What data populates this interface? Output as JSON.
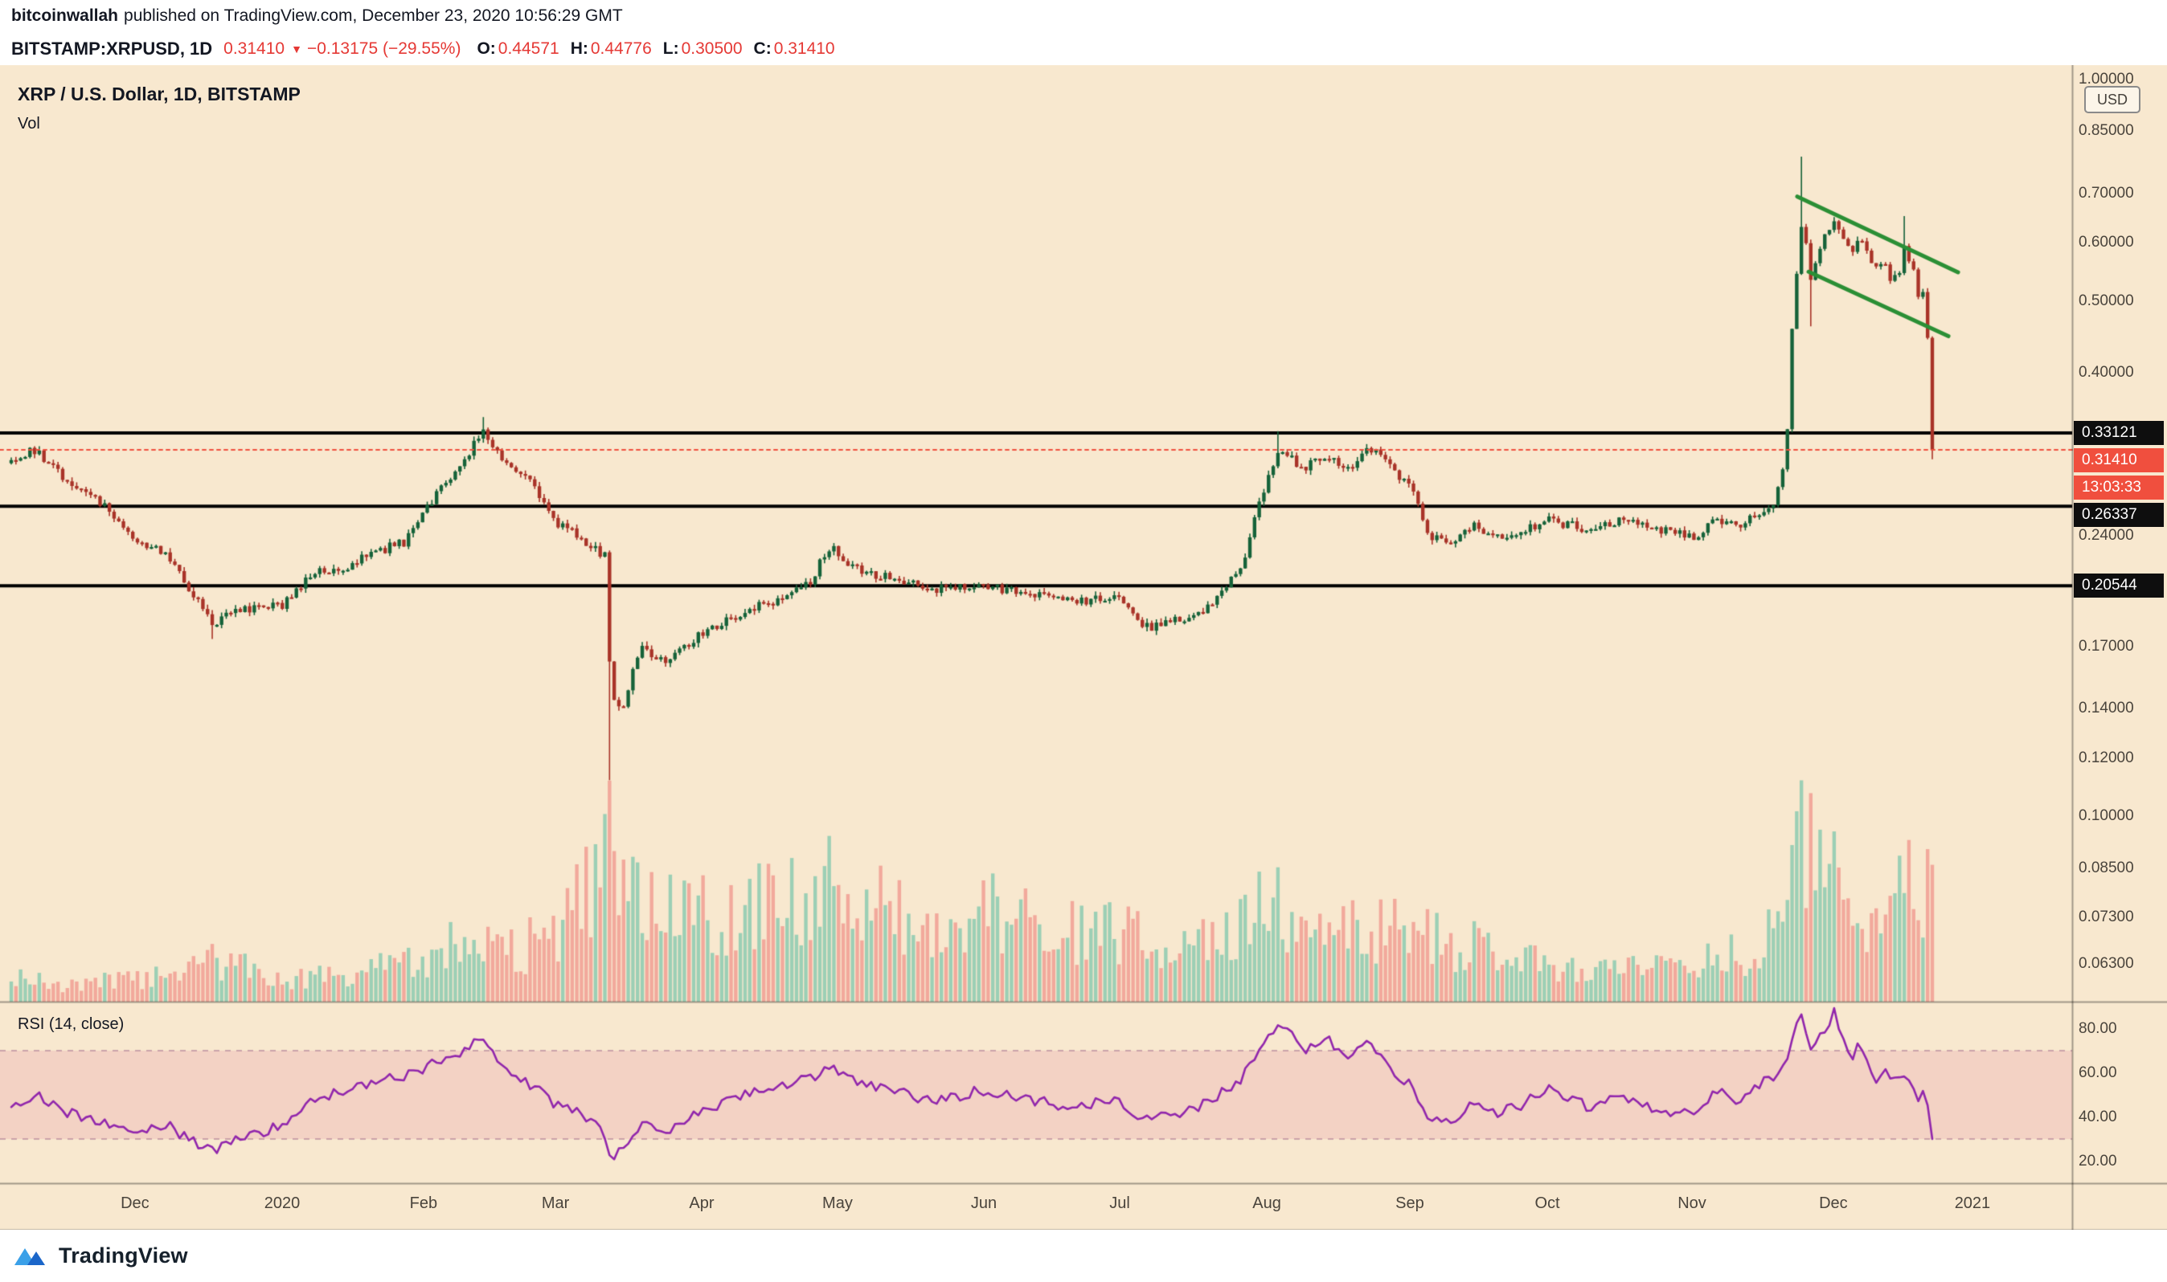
{
  "header": {
    "author": "bitcoinwallah",
    "published": "published on TradingView.com, December 23, 2020 10:56:29 GMT",
    "symbol": "BITSTAMP:XRPUSD, 1D",
    "last": "0.31410",
    "direction": "▼",
    "change": "−0.13175 (−29.55%)",
    "o_label": "O:",
    "o_value": "0.44571",
    "h_label": "H:",
    "h_value": "0.44776",
    "l_label": "L:",
    "l_value": "0.30500",
    "c_label": "C:",
    "c_value": "0.31410"
  },
  "chart": {
    "legend_title": "XRP / U.S. Dollar, 1D, BITSTAMP",
    "legend_vol": "Vol",
    "rsi_label": "RSI (14, close)",
    "axis_currency": "USD"
  },
  "footer": {
    "brand": "TradingView"
  },
  "colors": {
    "background": "#f8e8cf",
    "candle_up": "#156239",
    "candle_down": "#a93328",
    "vol_up": "#9ccfb5",
    "vol_down": "#f2a99c",
    "level_line": "#000000",
    "last_price_line": "#f04f3e",
    "label_black_bg": "#0e0e0e",
    "label_red_bg": "#f04f3e",
    "channel": "#2b8f35",
    "rsi_line": "#9126ac",
    "rsi_band_fill": "rgba(210,60,120,0.13)",
    "rsi_band_edge": "rgba(150,90,130,0.55)",
    "separator": "rgba(0,0,0,0.35)",
    "axis_text": "#4a443c"
  },
  "chart_data": {
    "type": "candlestick",
    "symbol": "XRP/USD",
    "exchange": "BITSTAMP",
    "timeframe": "1D",
    "price_scale": "log",
    "last_price": 0.3141,
    "last_candle": {
      "o": 0.44571,
      "h": 0.44776,
      "l": 0.305,
      "c": 0.3141
    },
    "countdown": "13:03:33",
    "horizontal_lines": [
      0.33121,
      0.26337,
      0.20544
    ],
    "price_axis": {
      "ticks": [
        "1.00000",
        "0.85000",
        "0.70000",
        "0.60000",
        "0.50000",
        "0.40000",
        "0.24000",
        "0.17000",
        "0.14000",
        "0.12000",
        "0.10000",
        "0.08500",
        "0.07300",
        "0.06300"
      ],
      "labels": [
        {
          "text": "0.33121",
          "price": 0.33121,
          "style": "level"
        },
        {
          "text": "0.31410",
          "price": 0.3141,
          "style": "last"
        },
        {
          "text": "13:03:33",
          "price": 0.3141,
          "style": "countdown"
        },
        {
          "text": "0.26337",
          "price": 0.26337,
          "style": "level"
        },
        {
          "text": "0.20544",
          "price": 0.20544,
          "style": "level"
        }
      ]
    },
    "rsi": {
      "ticks": [
        "20.00",
        "40.00",
        "60.00",
        "80.00"
      ],
      "band": [
        30,
        70
      ]
    },
    "time_axis": [
      {
        "label": "Dec",
        "t": 0.0644
      },
      {
        "label": "2020",
        "t": 0.141
      },
      {
        "label": "Feb",
        "t": 0.2146
      },
      {
        "label": "Mar",
        "t": 0.2833
      },
      {
        "label": "Apr",
        "t": 0.3594
      },
      {
        "label": "May",
        "t": 0.4301
      },
      {
        "label": "Jun",
        "t": 0.5063
      },
      {
        "label": "Jul",
        "t": 0.577
      },
      {
        "label": "Aug",
        "t": 0.6536
      },
      {
        "label": "Sep",
        "t": 0.728
      },
      {
        "label": "Oct",
        "t": 0.7996
      },
      {
        "label": "Nov",
        "t": 0.8749
      },
      {
        "label": "Dec",
        "t": 0.9485
      },
      {
        "label": "2021",
        "t": 1.0209
      }
    ],
    "candles": 412,
    "seed": 20,
    "price_path": [
      [
        0,
        0.302
      ],
      [
        0.012,
        0.314
      ],
      [
        0.03,
        0.283
      ],
      [
        0.05,
        0.262
      ],
      [
        0.064,
        0.24
      ],
      [
        0.08,
        0.226
      ],
      [
        0.092,
        0.205
      ],
      [
        0.104,
        0.183
      ],
      [
        0.118,
        0.19
      ],
      [
        0.141,
        0.193
      ],
      [
        0.158,
        0.214
      ],
      [
        0.175,
        0.219
      ],
      [
        0.192,
        0.229
      ],
      [
        0.205,
        0.236
      ],
      [
        0.215,
        0.258
      ],
      [
        0.232,
        0.296
      ],
      [
        0.246,
        0.332
      ],
      [
        0.256,
        0.305
      ],
      [
        0.268,
        0.288
      ],
      [
        0.283,
        0.252
      ],
      [
        0.298,
        0.237
      ],
      [
        0.309,
        0.225
      ],
      [
        0.312,
        0.148
      ],
      [
        0.318,
        0.14
      ],
      [
        0.328,
        0.17
      ],
      [
        0.34,
        0.163
      ],
      [
        0.359,
        0.177
      ],
      [
        0.378,
        0.188
      ],
      [
        0.398,
        0.196
      ],
      [
        0.415,
        0.207
      ],
      [
        0.427,
        0.233
      ],
      [
        0.44,
        0.216
      ],
      [
        0.458,
        0.211
      ],
      [
        0.478,
        0.203
      ],
      [
        0.506,
        0.206
      ],
      [
        0.525,
        0.201
      ],
      [
        0.548,
        0.196
      ],
      [
        0.577,
        0.197
      ],
      [
        0.59,
        0.18
      ],
      [
        0.605,
        0.184
      ],
      [
        0.622,
        0.191
      ],
      [
        0.64,
        0.216
      ],
      [
        0.654,
        0.286
      ],
      [
        0.66,
        0.318
      ],
      [
        0.672,
        0.297
      ],
      [
        0.684,
        0.309
      ],
      [
        0.696,
        0.294
      ],
      [
        0.708,
        0.316
      ],
      [
        0.719,
        0.296
      ],
      [
        0.728,
        0.281
      ],
      [
        0.738,
        0.239
      ],
      [
        0.75,
        0.234
      ],
      [
        0.76,
        0.248
      ],
      [
        0.772,
        0.241
      ],
      [
        0.785,
        0.243
      ],
      [
        0.8,
        0.253
      ],
      [
        0.812,
        0.248
      ],
      [
        0.825,
        0.243
      ],
      [
        0.836,
        0.253
      ],
      [
        0.848,
        0.247
      ],
      [
        0.86,
        0.244
      ],
      [
        0.875,
        0.239
      ],
      [
        0.887,
        0.252
      ],
      [
        0.898,
        0.248
      ],
      [
        0.908,
        0.254
      ],
      [
        0.918,
        0.266
      ],
      [
        0.924,
        0.305
      ],
      [
        0.9264,
        0.44
      ],
      [
        0.9288,
        0.5
      ],
      [
        0.9313,
        0.645
      ],
      [
        0.9337,
        0.615
      ],
      [
        0.9362,
        0.53
      ],
      [
        0.9411,
        0.585
      ],
      [
        0.946,
        0.625
      ],
      [
        0.9485,
        0.648
      ],
      [
        0.9532,
        0.612
      ],
      [
        0.9579,
        0.585
      ],
      [
        0.9626,
        0.612
      ],
      [
        0.9672,
        0.575
      ],
      [
        0.9719,
        0.548
      ],
      [
        0.9766,
        0.568
      ],
      [
        0.9789,
        0.525
      ],
      [
        0.9836,
        0.556
      ],
      [
        0.9859,
        0.596
      ],
      [
        0.9883,
        0.568
      ],
      [
        0.9906,
        0.552
      ],
      [
        0.993,
        0.502
      ],
      [
        0.9953,
        0.522
      ],
      [
        0.9977,
        0.4457
      ],
      [
        1,
        0.3141
      ]
    ],
    "volume_path": [
      [
        0,
        0.1
      ],
      [
        0.03,
        0.08
      ],
      [
        0.064,
        0.09
      ],
      [
        0.092,
        0.14
      ],
      [
        0.104,
        0.18
      ],
      [
        0.141,
        0.1
      ],
      [
        0.17,
        0.12
      ],
      [
        0.19,
        0.15
      ],
      [
        0.215,
        0.2
      ],
      [
        0.246,
        0.28
      ],
      [
        0.268,
        0.24
      ],
      [
        0.283,
        0.3
      ],
      [
        0.309,
        0.55
      ],
      [
        0.312,
        0.78
      ],
      [
        0.318,
        0.62
      ],
      [
        0.328,
        0.45
      ],
      [
        0.345,
        0.4
      ],
      [
        0.359,
        0.38
      ],
      [
        0.38,
        0.36
      ],
      [
        0.4,
        0.48
      ],
      [
        0.415,
        0.42
      ],
      [
        0.427,
        0.5
      ],
      [
        0.445,
        0.42
      ],
      [
        0.47,
        0.36
      ],
      [
        0.506,
        0.4
      ],
      [
        0.53,
        0.36
      ],
      [
        0.555,
        0.3
      ],
      [
        0.577,
        0.3
      ],
      [
        0.6,
        0.26
      ],
      [
        0.62,
        0.28
      ],
      [
        0.645,
        0.38
      ],
      [
        0.654,
        0.44
      ],
      [
        0.672,
        0.38
      ],
      [
        0.7,
        0.32
      ],
      [
        0.728,
        0.32
      ],
      [
        0.75,
        0.26
      ],
      [
        0.78,
        0.2
      ],
      [
        0.8,
        0.16
      ],
      [
        0.83,
        0.13
      ],
      [
        0.86,
        0.14
      ],
      [
        0.875,
        0.17
      ],
      [
        0.9,
        0.21
      ],
      [
        0.9215,
        0.32
      ],
      [
        0.9264,
        0.6
      ],
      [
        0.9313,
        1
      ],
      [
        0.9362,
        0.68
      ],
      [
        0.946,
        0.46
      ],
      [
        0.9485,
        0.52
      ],
      [
        0.96,
        0.36
      ],
      [
        0.9719,
        0.3
      ],
      [
        0.9789,
        0.36
      ],
      [
        0.9859,
        0.72
      ],
      [
        0.993,
        0.46
      ],
      [
        0.9977,
        0.52
      ],
      [
        1,
        0.58
      ]
    ],
    "rsi_path": [
      [
        0,
        44
      ],
      [
        0.012,
        50
      ],
      [
        0.03,
        42
      ],
      [
        0.05,
        37
      ],
      [
        0.064,
        34
      ],
      [
        0.08,
        37
      ],
      [
        0.092,
        30
      ],
      [
        0.104,
        24
      ],
      [
        0.118,
        30
      ],
      [
        0.141,
        36
      ],
      [
        0.158,
        48
      ],
      [
        0.175,
        52
      ],
      [
        0.192,
        57
      ],
      [
        0.205,
        59
      ],
      [
        0.215,
        62
      ],
      [
        0.232,
        69
      ],
      [
        0.246,
        75
      ],
      [
        0.256,
        63
      ],
      [
        0.268,
        56
      ],
      [
        0.283,
        46
      ],
      [
        0.298,
        41
      ],
      [
        0.309,
        32
      ],
      [
        0.312,
        21
      ],
      [
        0.328,
        36
      ],
      [
        0.34,
        33
      ],
      [
        0.359,
        43
      ],
      [
        0.378,
        49
      ],
      [
        0.398,
        53
      ],
      [
        0.415,
        57
      ],
      [
        0.427,
        63
      ],
      [
        0.44,
        56
      ],
      [
        0.458,
        53
      ],
      [
        0.478,
        47
      ],
      [
        0.506,
        52
      ],
      [
        0.525,
        49
      ],
      [
        0.548,
        45
      ],
      [
        0.577,
        47
      ],
      [
        0.59,
        38
      ],
      [
        0.605,
        41
      ],
      [
        0.622,
        46
      ],
      [
        0.64,
        57
      ],
      [
        0.654,
        74
      ],
      [
        0.66,
        84
      ],
      [
        0.672,
        70
      ],
      [
        0.684,
        77
      ],
      [
        0.696,
        66
      ],
      [
        0.708,
        74
      ],
      [
        0.719,
        60
      ],
      [
        0.728,
        55
      ],
      [
        0.738,
        39
      ],
      [
        0.75,
        37
      ],
      [
        0.76,
        47
      ],
      [
        0.772,
        42
      ],
      [
        0.785,
        45
      ],
      [
        0.8,
        53
      ],
      [
        0.812,
        48
      ],
      [
        0.825,
        43
      ],
      [
        0.836,
        52
      ],
      [
        0.848,
        46
      ],
      [
        0.86,
        43
      ],
      [
        0.875,
        41
      ],
      [
        0.887,
        52
      ],
      [
        0.898,
        48
      ],
      [
        0.908,
        53
      ],
      [
        0.918,
        59
      ],
      [
        0.924,
        66
      ],
      [
        0.9264,
        76
      ],
      [
        0.9313,
        86
      ],
      [
        0.9337,
        80
      ],
      [
        0.9362,
        68
      ],
      [
        0.9411,
        77
      ],
      [
        0.946,
        83
      ],
      [
        0.9485,
        88
      ],
      [
        0.9532,
        76
      ],
      [
        0.9579,
        67
      ],
      [
        0.9626,
        73
      ],
      [
        0.9672,
        61
      ],
      [
        0.9719,
        57
      ],
      [
        0.9766,
        63
      ],
      [
        0.9789,
        54
      ],
      [
        0.9836,
        59
      ],
      [
        0.9883,
        56
      ],
      [
        0.993,
        47
      ],
      [
        0.9953,
        51
      ],
      [
        0.9977,
        43
      ],
      [
        1,
        30
      ]
    ],
    "wick_events": [
      {
        "t": 0.104,
        "low": 0.174
      },
      {
        "t": 0.246,
        "high": 0.348
      },
      {
        "t": 0.312,
        "low": 0.112
      },
      {
        "t": 0.66,
        "high": 0.333
      },
      {
        "t": 0.9313,
        "high": 0.785
      },
      {
        "t": 0.9362,
        "low": 0.462
      },
      {
        "t": 0.9859,
        "high": 0.652
      }
    ],
    "trend_channel": {
      "upper": [
        [
          0.9297,
          0.693
        ],
        [
          1.0134,
          0.547
        ]
      ],
      "lower": [
        [
          0.9356,
          0.548
        ],
        [
          1.0084,
          0.448
        ]
      ]
    }
  }
}
